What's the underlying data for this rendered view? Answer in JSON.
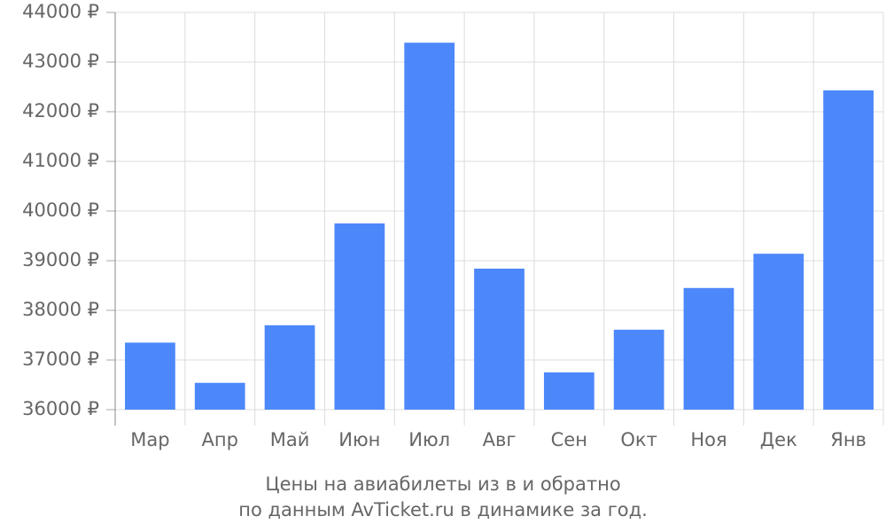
{
  "chart_data": {
    "type": "bar",
    "title": "Цены на авиабилеты из  в  и обратно",
    "subtitle": "по данным AvTicket.ru в динамике за год.",
    "categories": [
      "Мар",
      "Апр",
      "Май",
      "Июн",
      "Июл",
      "Авг",
      "Сен",
      "Окт",
      "Ноя",
      "Дек",
      "Янв"
    ],
    "values": [
      37350,
      36540,
      37700,
      39750,
      43390,
      38840,
      36750,
      37610,
      38450,
      39140,
      42430
    ],
    "color": "#4d88fb",
    "ylim": [
      36000,
      44000
    ],
    "yticks": [
      {
        "value": 36000,
        "label": "36000 ₽"
      },
      {
        "value": 37000,
        "label": "37000 ₽"
      },
      {
        "value": 38000,
        "label": "38000 ₽"
      },
      {
        "value": 39000,
        "label": "39000 ₽"
      },
      {
        "value": 40000,
        "label": "40000 ₽"
      },
      {
        "value": 41000,
        "label": "41000 ₽"
      },
      {
        "value": 42000,
        "label": "42000 ₽"
      },
      {
        "value": 43000,
        "label": "43000 ₽"
      },
      {
        "value": 44000,
        "label": "44000 ₽"
      }
    ],
    "grid": true
  }
}
